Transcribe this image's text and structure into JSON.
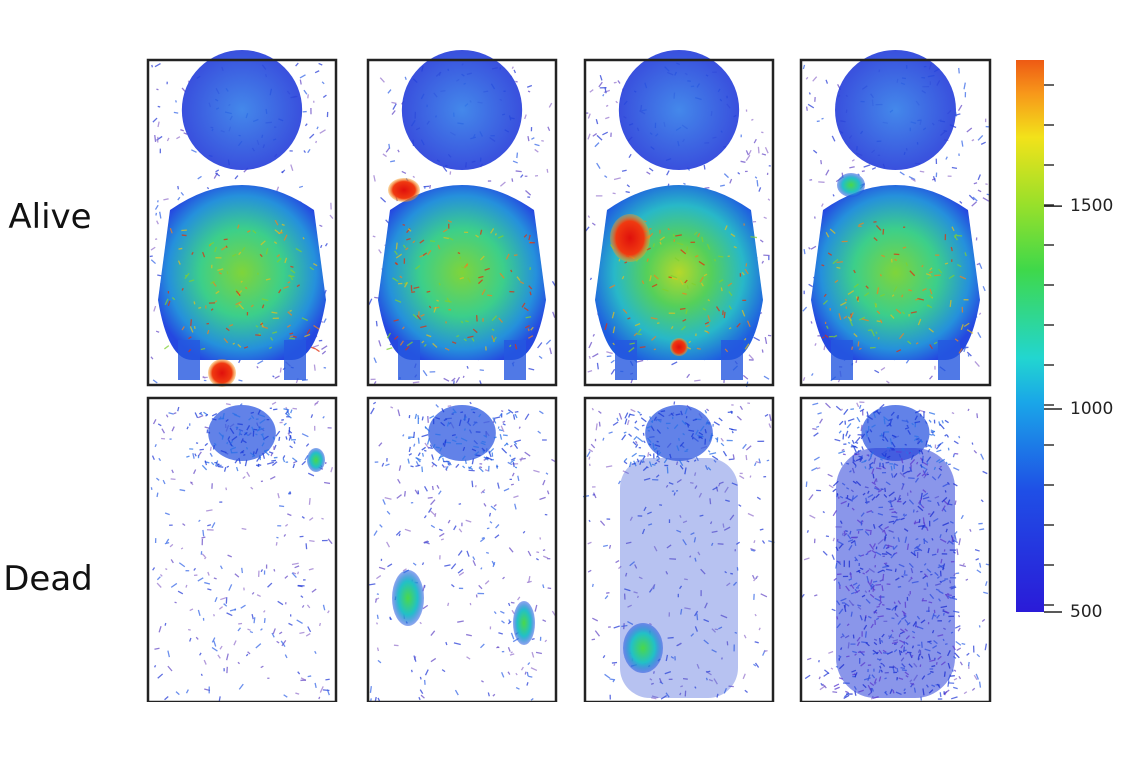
{
  "rows": [
    "Alive",
    "Dead"
  ],
  "colorbar": {
    "lim": [
      500,
      1860
    ],
    "ticks": [
      500,
      1000,
      1500
    ]
  }
}
